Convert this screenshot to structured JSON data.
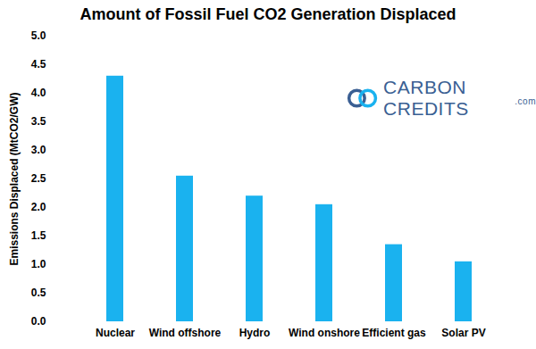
{
  "chart_data": {
    "type": "bar",
    "title": "Amount of Fossil Fuel CO2 Generation Displaced",
    "y_label": "Emissions Displaced (MtCO2/GW)",
    "categories": [
      "Nuclear",
      "Wind offshore",
      "Hydro",
      "Wind onshore",
      "Efficient gas",
      "Solar PV"
    ],
    "values": [
      4.3,
      2.55,
      2.2,
      2.05,
      1.35,
      1.05
    ],
    "color": "#1ab2ef",
    "ylim": [
      0,
      5
    ],
    "yticks": [
      {
        "value": 0,
        "label": "0.0"
      },
      0.5,
      {
        "value": 1,
        "label": "1.0"
      },
      1.5,
      {
        "value": 2,
        "label": "2.0"
      },
      2.5,
      {
        "value": 3,
        "label": "3.0"
      },
      3.5,
      {
        "value": 4,
        "label": "4.0"
      },
      4.5,
      {
        "value": 5,
        "label": "5.0"
      }
    ],
    "grid": false,
    "annotations": [
      "CARBON CREDITS",
      ".com"
    ]
  }
}
